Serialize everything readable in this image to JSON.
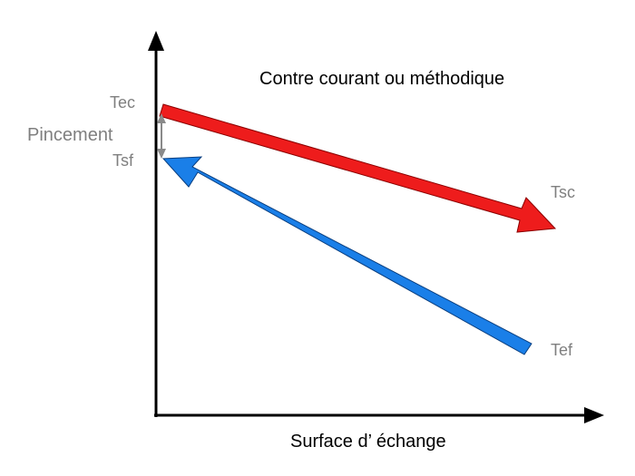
{
  "title": "Contre courant ou méthodique",
  "x_axis_label": "Surface d’ échange",
  "labels": {
    "hot_inlet": "Tec",
    "hot_outlet": "Tsc",
    "cold_inlet": "Tef",
    "cold_outlet": "Tsf",
    "pinch": "Pincement"
  },
  "colors": {
    "hot_stream": "#ee1c1c",
    "cold_stream": "#1a7fe8",
    "axis": "#000000",
    "label_gray": "#7f7f7f",
    "pinch_marker": "#8a8a8a"
  }
}
